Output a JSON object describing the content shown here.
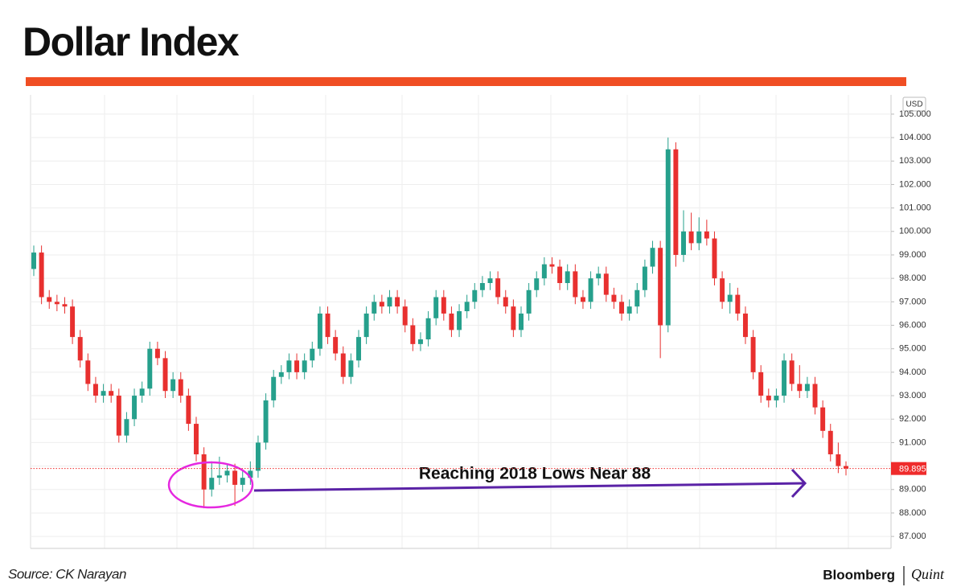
{
  "chart_data": {
    "type": "candlestick",
    "title": "Dollar Index",
    "unit": "USD",
    "annotation": "Reaching 2018 Lows Near 88",
    "source": "Source: CK Narayan",
    "brand": "Bloomberg",
    "brand_partner": "Quint",
    "up_color": "#26a08c",
    "down_color": "#e8302f",
    "last_price": 89.895,
    "last_price_color": "#ef2b2b",
    "ylim": [
      86.49,
      105.82
    ],
    "yticks": [
      {
        "value": 87,
        "label": "87.000"
      },
      {
        "value": 88,
        "label": "88.000"
      },
      {
        "value": 89,
        "label": "89.000"
      },
      {
        "value": 90,
        "label": "90.000"
      },
      {
        "value": 91,
        "label": "91.000"
      },
      {
        "value": 92,
        "label": "92.000"
      },
      {
        "value": 93,
        "label": "93.000"
      },
      {
        "value": 94,
        "label": "94.000"
      },
      {
        "value": 95,
        "label": "95.000"
      },
      {
        "value": 96,
        "label": "96.000"
      },
      {
        "value": 97,
        "label": "97.000"
      },
      {
        "value": 98,
        "label": "98.000"
      },
      {
        "value": 99,
        "label": "99.000"
      },
      {
        "value": 100,
        "label": "100.000"
      },
      {
        "value": 101,
        "label": "101.000"
      },
      {
        "value": 102,
        "label": "102.000"
      },
      {
        "value": 103,
        "label": "103.000"
      },
      {
        "value": 104,
        "label": "104.000"
      },
      {
        "value": 105,
        "label": "105.000"
      }
    ],
    "grid": true,
    "open": [
      98.4,
      99.1,
      97.2,
      97.0,
      96.9,
      96.8,
      95.5,
      94.5,
      93.5,
      93.0,
      93.2,
      93.0,
      91.3,
      92.0,
      93.0,
      93.3,
      95.0,
      94.6,
      93.2,
      93.7,
      93.0,
      91.8,
      90.5,
      89.0,
      89.5,
      89.6,
      89.8,
      89.2,
      89.5,
      89.8,
      91.0,
      92.8,
      93.8,
      94.0,
      94.5,
      94.0,
      94.5,
      95.0,
      96.5,
      95.5,
      94.8,
      93.8,
      94.5,
      95.5,
      96.5,
      97.0,
      96.8,
      97.2,
      96.8,
      96.0,
      95.2,
      95.4,
      96.3,
      97.2,
      96.5,
      95.8,
      96.6,
      97.0,
      97.5,
      97.8,
      98.0,
      97.2,
      96.8,
      95.8,
      96.5,
      97.5,
      98.0,
      98.6,
      98.5,
      97.8,
      98.3,
      97.2,
      97.0,
      98.0,
      98.2,
      97.3,
      97.0,
      96.5,
      96.8,
      97.5,
      98.5,
      99.3,
      96.0,
      103.5,
      99.0,
      100.0,
      99.5,
      100.0,
      99.7,
      98.0,
      97.0,
      97.3,
      96.5,
      95.5,
      94.0,
      93.0,
      92.8,
      93.0,
      94.5,
      93.5,
      93.2,
      93.5,
      92.5,
      91.5,
      90.5,
      90.0
    ],
    "high": [
      99.4,
      99.4,
      97.5,
      97.3,
      97.2,
      97.1,
      95.8,
      94.8,
      93.8,
      93.5,
      93.5,
      93.3,
      92.3,
      93.3,
      93.6,
      95.3,
      95.3,
      94.9,
      94.0,
      94.0,
      93.3,
      92.1,
      90.8,
      90.2,
      90.4,
      90.1,
      90.1,
      89.8,
      90.2,
      91.3,
      93.1,
      94.1,
      94.3,
      94.8,
      94.8,
      94.8,
      95.3,
      96.8,
      96.8,
      95.8,
      95.1,
      94.8,
      95.8,
      96.8,
      97.3,
      97.3,
      97.5,
      97.5,
      97.1,
      96.3,
      95.7,
      96.6,
      97.5,
      97.5,
      96.8,
      96.9,
      97.3,
      97.8,
      98.1,
      98.3,
      98.3,
      97.5,
      97.1,
      96.8,
      97.8,
      98.3,
      98.9,
      98.9,
      98.8,
      98.6,
      98.6,
      97.5,
      98.3,
      98.5,
      98.5,
      97.6,
      97.3,
      97.1,
      97.8,
      98.8,
      99.6,
      99.6,
      104.0,
      103.8,
      100.9,
      100.8,
      100.6,
      100.5,
      100.0,
      98.3,
      97.8,
      97.6,
      96.8,
      95.8,
      94.3,
      93.3,
      93.3,
      94.8,
      94.8,
      94.3,
      93.8,
      93.8,
      92.8,
      91.8,
      91.0,
      90.2
    ],
    "low": [
      98.1,
      96.9,
      96.7,
      96.6,
      96.5,
      95.2,
      94.2,
      93.2,
      92.7,
      92.7,
      92.7,
      91.0,
      91.0,
      91.7,
      92.7,
      93.0,
      94.3,
      92.9,
      92.9,
      92.7,
      91.5,
      90.2,
      88.2,
      88.7,
      89.2,
      89.3,
      88.3,
      88.9,
      89.2,
      89.5,
      90.7,
      92.5,
      93.5,
      93.7,
      93.7,
      93.7,
      94.2,
      94.7,
      95.2,
      94.5,
      93.5,
      93.5,
      94.2,
      95.2,
      96.2,
      96.5,
      96.5,
      96.5,
      95.7,
      94.9,
      94.9,
      95.1,
      96.0,
      96.2,
      95.5,
      95.5,
      96.3,
      96.7,
      97.2,
      97.5,
      96.9,
      96.5,
      95.5,
      95.5,
      96.2,
      97.2,
      97.7,
      98.2,
      97.5,
      97.5,
      96.9,
      96.7,
      96.7,
      97.7,
      97.0,
      96.7,
      96.2,
      96.2,
      96.5,
      97.2,
      98.2,
      94.6,
      95.7,
      98.5,
      98.7,
      99.2,
      99.2,
      99.4,
      97.7,
      96.7,
      96.5,
      96.2,
      95.2,
      93.7,
      92.7,
      92.5,
      92.5,
      92.7,
      93.2,
      92.9,
      92.9,
      92.2,
      91.2,
      90.2,
      89.7,
      89.6
    ],
    "close": [
      99.1,
      97.2,
      97.0,
      96.9,
      96.8,
      95.5,
      94.5,
      93.5,
      93.0,
      93.2,
      93.0,
      91.3,
      92.0,
      93.0,
      93.3,
      95.0,
      94.6,
      93.2,
      93.7,
      93.0,
      91.8,
      90.5,
      89.0,
      89.5,
      89.6,
      89.8,
      89.2,
      89.5,
      89.8,
      91.0,
      92.8,
      93.8,
      94.0,
      94.5,
      94.0,
      94.5,
      95.0,
      96.5,
      95.5,
      94.8,
      93.8,
      94.5,
      95.5,
      96.5,
      97.0,
      96.8,
      97.2,
      96.8,
      96.0,
      95.2,
      95.4,
      96.3,
      97.2,
      96.5,
      95.8,
      96.6,
      97.0,
      97.5,
      97.8,
      98.0,
      97.2,
      96.8,
      95.8,
      96.5,
      97.5,
      98.0,
      98.6,
      98.5,
      97.8,
      98.3,
      97.2,
      97.0,
      98.0,
      98.2,
      97.3,
      97.0,
      96.5,
      96.8,
      97.5,
      98.5,
      99.3,
      96.0,
      103.5,
      99.0,
      100.0,
      99.5,
      100.0,
      99.7,
      98.0,
      97.0,
      97.3,
      96.5,
      95.5,
      94.0,
      93.0,
      92.8,
      93.0,
      94.5,
      93.5,
      93.2,
      93.5,
      92.5,
      91.5,
      90.5,
      90.0,
      89.895
    ]
  }
}
